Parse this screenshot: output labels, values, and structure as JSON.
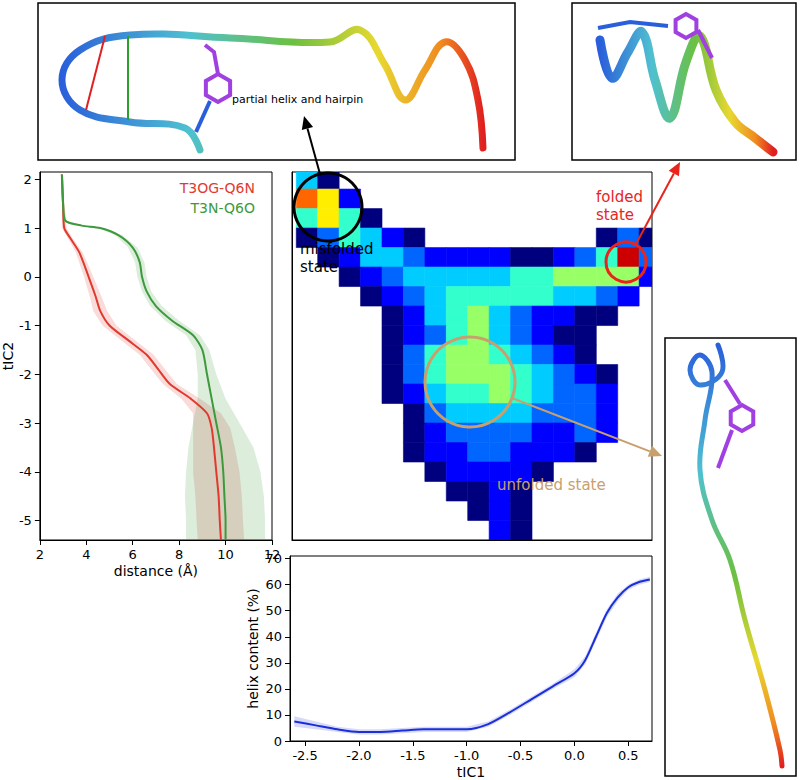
{
  "chart_data": [
    {
      "type": "line",
      "xlabel": "distance (Å)",
      "ylabel": "tIC2",
      "xlim": [
        2,
        12
      ],
      "ylim": [
        -5.4,
        2.15
      ],
      "xticks": [
        2,
        4,
        6,
        8,
        10,
        12
      ],
      "yticks": [
        -5,
        -4,
        -3,
        -2,
        -1,
        0,
        1,
        2
      ],
      "legend": "upper right",
      "grid": false,
      "series": [
        {
          "name": "T3OG-Q6N",
          "color": "#e03a2f",
          "x": [
            2.95,
            3.0,
            3.05,
            3.3,
            3.7,
            4.1,
            4.4,
            4.6,
            5.0,
            5.8,
            6.6,
            7.1,
            7.6,
            8.5,
            9.2,
            9.4,
            9.5,
            9.6,
            9.7,
            9.75,
            9.8
          ],
          "y": [
            2.1,
            1.5,
            1.0,
            0.8,
            0.5,
            0.0,
            -0.4,
            -0.7,
            -1.0,
            -1.3,
            -1.6,
            -1.9,
            -2.2,
            -2.5,
            -2.8,
            -3.1,
            -3.5,
            -4.0,
            -4.5,
            -5.0,
            -5.4
          ],
          "errors": [
            0.05,
            0.05,
            0.1,
            0.1,
            0.15,
            0.2,
            0.25,
            0.3,
            0.3,
            0.3,
            0.3,
            0.3,
            0.3,
            0.4,
            0.6,
            0.8,
            0.9,
            1.0,
            1.0,
            1.0,
            1.0
          ]
        },
        {
          "name": "T3N-Q6O",
          "color": "#3c9a3c",
          "x": [
            2.95,
            3.0,
            3.1,
            3.8,
            4.6,
            5.4,
            6.0,
            6.3,
            6.4,
            6.6,
            7.0,
            7.7,
            8.6,
            9.0,
            9.2,
            9.4,
            9.6,
            9.8,
            9.9,
            9.95,
            10.0,
            10.0
          ],
          "y": [
            2.1,
            1.5,
            1.15,
            1.05,
            1.0,
            0.85,
            0.6,
            0.3,
            0.0,
            -0.3,
            -0.6,
            -0.9,
            -1.2,
            -1.5,
            -2.0,
            -2.5,
            -3.0,
            -3.5,
            -4.0,
            -4.5,
            -5.0,
            -5.4
          ],
          "errors": [
            0.05,
            0.05,
            0.05,
            0.1,
            0.1,
            0.15,
            0.2,
            0.2,
            0.2,
            0.2,
            0.25,
            0.3,
            0.3,
            0.3,
            0.4,
            0.6,
            1.0,
            1.4,
            1.6,
            1.7,
            1.7,
            1.7
          ]
        }
      ]
    },
    {
      "type": "heatmap",
      "xlim": [
        -2.64,
        0.72
      ],
      "ylim": [
        -5.4,
        2.15
      ],
      "tick_labels": false,
      "x_edges": [
        -2.6,
        -2.4,
        -2.2,
        -2.0,
        -1.8,
        -1.6,
        -1.4,
        -1.2,
        -1.0,
        -0.8,
        -0.6,
        -0.4,
        -0.2,
        0.0,
        0.2,
        0.4,
        0.6,
        0.8
      ],
      "y_edges": [
        2.2,
        1.8,
        1.4,
        1.0,
        0.6,
        0.2,
        -0.2,
        -0.6,
        -1.0,
        -1.4,
        -1.8,
        -2.2,
        -2.6,
        -3.0,
        -3.4,
        -3.8,
        -4.2,
        -4.6,
        -5.0,
        -5.4
      ],
      "cells": [
        [
          4,
          1,
          0,
          0,
          0,
          0,
          0,
          0,
          0,
          0,
          0,
          0,
          0,
          0,
          0,
          0,
          0
        ],
        [
          8,
          7,
          2,
          0,
          0,
          0,
          0,
          0,
          0,
          0,
          0,
          0,
          0,
          0,
          0,
          0,
          0
        ],
        [
          5,
          7,
          5,
          1,
          0,
          0,
          0,
          0,
          0,
          0,
          0,
          0,
          0,
          0,
          0,
          0,
          0
        ],
        [
          1,
          3,
          5,
          4,
          2,
          1,
          0,
          0,
          0,
          0,
          0,
          0,
          0,
          0,
          1,
          3,
          1
        ],
        [
          0,
          1,
          2,
          4,
          4,
          3,
          2,
          2,
          2,
          2,
          1,
          1,
          2,
          3,
          5,
          9,
          3
        ],
        [
          0,
          0,
          1,
          2,
          3,
          4,
          4,
          4,
          4,
          4,
          5,
          5,
          6,
          6,
          6,
          6,
          2
        ],
        [
          0,
          0,
          0,
          1,
          2,
          3,
          4,
          5,
          5,
          5,
          5,
          5,
          4,
          4,
          3,
          2,
          0
        ],
        [
          0,
          0,
          0,
          0,
          1,
          2,
          4,
          5,
          6,
          4,
          3,
          2,
          2,
          1,
          1,
          0,
          0
        ],
        [
          0,
          0,
          0,
          0,
          1,
          2,
          3,
          5,
          6,
          4,
          3,
          2,
          1,
          1,
          0,
          0,
          0
        ],
        [
          0,
          0,
          0,
          0,
          1,
          3,
          5,
          6,
          6,
          5,
          4,
          3,
          2,
          1,
          0,
          0,
          0
        ],
        [
          0,
          0,
          0,
          0,
          1,
          3,
          5,
          6,
          6,
          6,
          5,
          4,
          3,
          2,
          1,
          0,
          0
        ],
        [
          0,
          0,
          0,
          0,
          1,
          2,
          4,
          5,
          5,
          6,
          5,
          4,
          3,
          3,
          2,
          0,
          0
        ],
        [
          0,
          0,
          0,
          0,
          0,
          1,
          3,
          4,
          4,
          4,
          4,
          3,
          3,
          3,
          2,
          0,
          0
        ],
        [
          0,
          0,
          0,
          0,
          0,
          1,
          2,
          3,
          3,
          3,
          3,
          2,
          2,
          3,
          2,
          0,
          0
        ],
        [
          0,
          0,
          0,
          0,
          0,
          1,
          2,
          2,
          3,
          3,
          2,
          2,
          2,
          1,
          0,
          0,
          0
        ],
        [
          0,
          0,
          0,
          0,
          0,
          0,
          1,
          2,
          2,
          2,
          2,
          1,
          0,
          0,
          0,
          0,
          0
        ],
        [
          0,
          0,
          0,
          0,
          0,
          0,
          0,
          1,
          1,
          2,
          1,
          0,
          0,
          0,
          0,
          0,
          0
        ],
        [
          0,
          0,
          0,
          0,
          0,
          0,
          0,
          0,
          1,
          2,
          1,
          0,
          0,
          0,
          0,
          0,
          0
        ],
        [
          0,
          0,
          0,
          0,
          0,
          0,
          0,
          0,
          0,
          2,
          1,
          0,
          0,
          0,
          0,
          0,
          0
        ]
      ],
      "annotations": [
        {
          "text": "misfolded state",
          "color": "#000000"
        },
        {
          "text": "folded state",
          "color": "#e8251c"
        },
        {
          "text": "unfolded state",
          "color": "#c8a06e"
        },
        {
          "text": "partial helix and hairpin",
          "color": "#000000"
        }
      ]
    },
    {
      "type": "line",
      "xlabel": "tIC1",
      "ylabel": "helix content (%)",
      "xlim": [
        -2.64,
        0.72
      ],
      "ylim": [
        0,
        71
      ],
      "xticks": [
        -2.5,
        {
          "value": -2,
          "label": "-2.0"
        },
        -1.5,
        {
          "value": -1,
          "label": "-1.0"
        },
        -0.5,
        {
          "value": 0,
          "label": "0.0"
        },
        0.5
      ],
      "yticks": [
        0,
        10,
        20,
        30,
        40,
        50,
        60,
        70
      ],
      "grid": false,
      "series": [
        {
          "color": "#1a2fd9",
          "x": [
            -2.6,
            -2.4,
            -2.2,
            -2.0,
            -1.8,
            -1.6,
            -1.4,
            -1.2,
            -1.0,
            -0.8,
            -0.6,
            -0.4,
            -0.2,
            0.0,
            0.1,
            0.2,
            0.3,
            0.4,
            0.5,
            0.6,
            0.7
          ],
          "values": [
            7.5,
            6,
            4.5,
            3.5,
            3.5,
            4,
            4.5,
            4.5,
            4.5,
            6.5,
            11,
            16,
            21,
            26,
            31,
            40,
            49,
            55,
            59,
            61,
            62
          ],
          "errors": [
            2,
            1.5,
            1,
            1,
            1,
            1,
            1,
            1,
            1,
            1,
            1,
            1,
            1,
            1.5,
            1.5,
            1.5,
            1.5,
            1.5,
            1,
            1,
            1
          ]
        }
      ]
    }
  ]
}
